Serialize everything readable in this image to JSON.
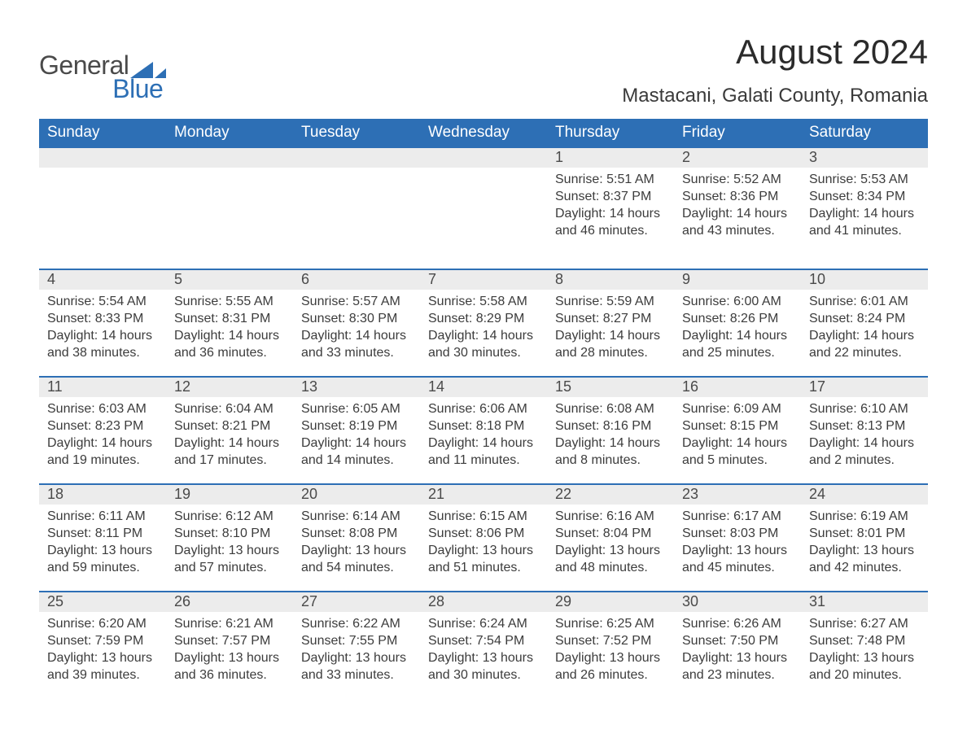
{
  "brand": {
    "word1": "General",
    "word2": "Blue",
    "mark_color": "#2d6fb5",
    "text_color1": "#4a4a4a",
    "text_color2": "#2d6fb5"
  },
  "header": {
    "title": "August 2024",
    "subtitle": "Mastacani, Galati County, Romania"
  },
  "colors": {
    "header_bg": "#2d6fb5",
    "header_fg": "#ffffff",
    "daynum_bg": "#ececec",
    "rule": "#2d6fb5",
    "body_text": "#3c3c3c",
    "page_bg": "#ffffff"
  },
  "typography": {
    "title_fontsize": 42,
    "subtitle_fontsize": 24,
    "weekday_fontsize": 19,
    "daynum_fontsize": 18,
    "body_fontsize": 16,
    "font_family": "Arial"
  },
  "layout": {
    "columns": 7,
    "rows": 5,
    "leading_empty_cells": 4
  },
  "weekdays": [
    "Sunday",
    "Monday",
    "Tuesday",
    "Wednesday",
    "Thursday",
    "Friday",
    "Saturday"
  ],
  "labels": {
    "sunrise": "Sunrise:",
    "sunset": "Sunset:",
    "daylight_prefix": "Daylight:",
    "daylight_hours_word": "hours",
    "daylight_and_word": "and",
    "daylight_minutes_word": "minutes."
  },
  "days": [
    {
      "n": 1,
      "rise": "5:51 AM",
      "set": "8:37 PM",
      "dh": 14,
      "dm": 46
    },
    {
      "n": 2,
      "rise": "5:52 AM",
      "set": "8:36 PM",
      "dh": 14,
      "dm": 43
    },
    {
      "n": 3,
      "rise": "5:53 AM",
      "set": "8:34 PM",
      "dh": 14,
      "dm": 41
    },
    {
      "n": 4,
      "rise": "5:54 AM",
      "set": "8:33 PM",
      "dh": 14,
      "dm": 38
    },
    {
      "n": 5,
      "rise": "5:55 AM",
      "set": "8:31 PM",
      "dh": 14,
      "dm": 36
    },
    {
      "n": 6,
      "rise": "5:57 AM",
      "set": "8:30 PM",
      "dh": 14,
      "dm": 33
    },
    {
      "n": 7,
      "rise": "5:58 AM",
      "set": "8:29 PM",
      "dh": 14,
      "dm": 30
    },
    {
      "n": 8,
      "rise": "5:59 AM",
      "set": "8:27 PM",
      "dh": 14,
      "dm": 28
    },
    {
      "n": 9,
      "rise": "6:00 AM",
      "set": "8:26 PM",
      "dh": 14,
      "dm": 25
    },
    {
      "n": 10,
      "rise": "6:01 AM",
      "set": "8:24 PM",
      "dh": 14,
      "dm": 22
    },
    {
      "n": 11,
      "rise": "6:03 AM",
      "set": "8:23 PM",
      "dh": 14,
      "dm": 19
    },
    {
      "n": 12,
      "rise": "6:04 AM",
      "set": "8:21 PM",
      "dh": 14,
      "dm": 17
    },
    {
      "n": 13,
      "rise": "6:05 AM",
      "set": "8:19 PM",
      "dh": 14,
      "dm": 14
    },
    {
      "n": 14,
      "rise": "6:06 AM",
      "set": "8:18 PM",
      "dh": 14,
      "dm": 11
    },
    {
      "n": 15,
      "rise": "6:08 AM",
      "set": "8:16 PM",
      "dh": 14,
      "dm": 8
    },
    {
      "n": 16,
      "rise": "6:09 AM",
      "set": "8:15 PM",
      "dh": 14,
      "dm": 5
    },
    {
      "n": 17,
      "rise": "6:10 AM",
      "set": "8:13 PM",
      "dh": 14,
      "dm": 2
    },
    {
      "n": 18,
      "rise": "6:11 AM",
      "set": "8:11 PM",
      "dh": 13,
      "dm": 59
    },
    {
      "n": 19,
      "rise": "6:12 AM",
      "set": "8:10 PM",
      "dh": 13,
      "dm": 57
    },
    {
      "n": 20,
      "rise": "6:14 AM",
      "set": "8:08 PM",
      "dh": 13,
      "dm": 54
    },
    {
      "n": 21,
      "rise": "6:15 AM",
      "set": "8:06 PM",
      "dh": 13,
      "dm": 51
    },
    {
      "n": 22,
      "rise": "6:16 AM",
      "set": "8:04 PM",
      "dh": 13,
      "dm": 48
    },
    {
      "n": 23,
      "rise": "6:17 AM",
      "set": "8:03 PM",
      "dh": 13,
      "dm": 45
    },
    {
      "n": 24,
      "rise": "6:19 AM",
      "set": "8:01 PM",
      "dh": 13,
      "dm": 42
    },
    {
      "n": 25,
      "rise": "6:20 AM",
      "set": "7:59 PM",
      "dh": 13,
      "dm": 39
    },
    {
      "n": 26,
      "rise": "6:21 AM",
      "set": "7:57 PM",
      "dh": 13,
      "dm": 36
    },
    {
      "n": 27,
      "rise": "6:22 AM",
      "set": "7:55 PM",
      "dh": 13,
      "dm": 33
    },
    {
      "n": 28,
      "rise": "6:24 AM",
      "set": "7:54 PM",
      "dh": 13,
      "dm": 30
    },
    {
      "n": 29,
      "rise": "6:25 AM",
      "set": "7:52 PM",
      "dh": 13,
      "dm": 26
    },
    {
      "n": 30,
      "rise": "6:26 AM",
      "set": "7:50 PM",
      "dh": 13,
      "dm": 23
    },
    {
      "n": 31,
      "rise": "6:27 AM",
      "set": "7:48 PM",
      "dh": 13,
      "dm": 20
    }
  ]
}
